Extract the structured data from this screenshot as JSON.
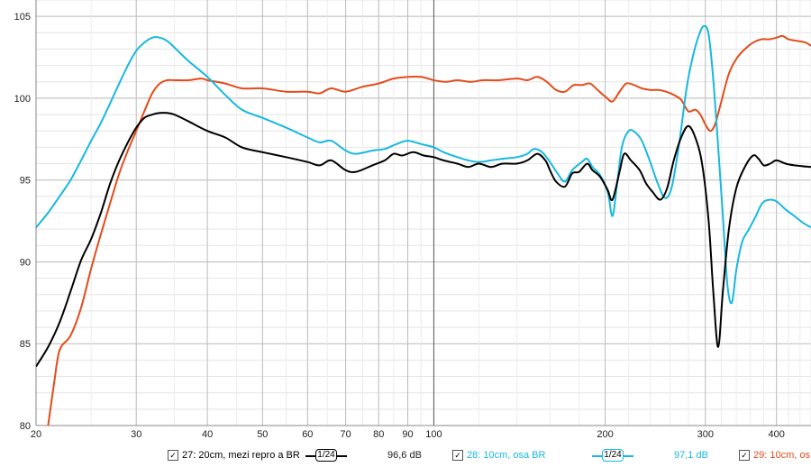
{
  "chart_data": {
    "type": "line",
    "xscale": "log",
    "xlim": [
      20,
      460
    ],
    "ylim": [
      80,
      106
    ],
    "grid": true,
    "x_ticks": [
      20,
      30,
      40,
      50,
      60,
      70,
      80,
      90,
      100,
      200,
      300,
      400
    ],
    "x_tick_labels": [
      "20",
      "30",
      "40",
      "50",
      "60",
      "70",
      "80",
      "90",
      "100",
      "200",
      "300",
      "400"
    ],
    "y_ticks": [
      80,
      85,
      90,
      95,
      100,
      105
    ],
    "y_tick_labels": [
      "80",
      "85",
      "90",
      "95",
      "100",
      "105"
    ],
    "series": [
      {
        "name": "27: 20cm, mezi repro a BR",
        "color": "#000000",
        "smoothing": "1/24",
        "level": "96,6 dB",
        "points": [
          [
            20,
            83.6
          ],
          [
            21,
            84.8
          ],
          [
            22,
            86.3
          ],
          [
            23,
            88.2
          ],
          [
            24,
            90.1
          ],
          [
            25,
            91.4
          ],
          [
            26,
            93.0
          ],
          [
            27,
            94.8
          ],
          [
            28,
            96.2
          ],
          [
            29,
            97.3
          ],
          [
            30,
            98.2
          ],
          [
            31,
            98.8
          ],
          [
            32,
            99.0
          ],
          [
            33,
            99.1
          ],
          [
            34,
            99.1
          ],
          [
            35,
            99.0
          ],
          [
            37,
            98.6
          ],
          [
            40,
            98.0
          ],
          [
            43,
            97.6
          ],
          [
            46,
            97.0
          ],
          [
            50,
            96.7
          ],
          [
            55,
            96.4
          ],
          [
            60,
            96.1
          ],
          [
            63,
            95.9
          ],
          [
            66,
            96.2
          ],
          [
            70,
            95.6
          ],
          [
            73,
            95.5
          ],
          [
            78,
            95.9
          ],
          [
            82,
            96.2
          ],
          [
            85,
            96.6
          ],
          [
            88,
            96.5
          ],
          [
            92,
            96.7
          ],
          [
            96,
            96.5
          ],
          [
            100,
            96.4
          ],
          [
            104,
            96.2
          ],
          [
            110,
            96.0
          ],
          [
            115,
            95.8
          ],
          [
            120,
            96.0
          ],
          [
            126,
            95.8
          ],
          [
            132,
            96.0
          ],
          [
            140,
            96.0
          ],
          [
            146,
            96.2
          ],
          [
            152,
            96.6
          ],
          [
            157,
            96.2
          ],
          [
            160,
            95.6
          ],
          [
            164,
            94.9
          ],
          [
            170,
            94.6
          ],
          [
            175,
            95.4
          ],
          [
            180,
            95.5
          ],
          [
            186,
            96.0
          ],
          [
            190,
            95.6
          ],
          [
            196,
            95.2
          ],
          [
            202,
            94.4
          ],
          [
            206,
            93.8
          ],
          [
            212,
            95.5
          ],
          [
            216,
            96.6
          ],
          [
            222,
            96.2
          ],
          [
            230,
            95.6
          ],
          [
            236,
            94.8
          ],
          [
            242,
            94.3
          ],
          [
            250,
            93.8
          ],
          [
            257,
            94.5
          ],
          [
            264,
            96.2
          ],
          [
            272,
            97.6
          ],
          [
            280,
            98.3
          ],
          [
            288,
            97.6
          ],
          [
            296,
            96.0
          ],
          [
            304,
            92.5
          ],
          [
            310,
            88.0
          ],
          [
            316,
            84.8
          ],
          [
            322,
            88.2
          ],
          [
            330,
            92.0
          ],
          [
            340,
            94.5
          ],
          [
            352,
            95.8
          ],
          [
            364,
            96.5
          ],
          [
            372,
            96.3
          ],
          [
            380,
            95.9
          ],
          [
            390,
            96.0
          ],
          [
            400,
            96.2
          ],
          [
            415,
            96.0
          ],
          [
            430,
            95.9
          ],
          [
            460,
            95.8
          ]
        ]
      },
      {
        "name": "28: 10cm, osa BR",
        "color": "#18b8e0",
        "smoothing": "1/24",
        "level": "97,1 dB",
        "points": [
          [
            20,
            92.1
          ],
          [
            21,
            93.0
          ],
          [
            22,
            94.0
          ],
          [
            23,
            95.0
          ],
          [
            24,
            96.2
          ],
          [
            25,
            97.4
          ],
          [
            26,
            98.5
          ],
          [
            27,
            99.7
          ],
          [
            28,
            100.9
          ],
          [
            29,
            102.0
          ],
          [
            30,
            102.9
          ],
          [
            31,
            103.4
          ],
          [
            32,
            103.7
          ],
          [
            33,
            103.7
          ],
          [
            34,
            103.5
          ],
          [
            35,
            103.1
          ],
          [
            37,
            102.3
          ],
          [
            40,
            101.3
          ],
          [
            43,
            100.2
          ],
          [
            46,
            99.3
          ],
          [
            50,
            98.8
          ],
          [
            55,
            98.2
          ],
          [
            60,
            97.6
          ],
          [
            63,
            97.3
          ],
          [
            66,
            97.4
          ],
          [
            70,
            96.8
          ],
          [
            73,
            96.6
          ],
          [
            78,
            96.8
          ],
          [
            82,
            96.9
          ],
          [
            86,
            97.2
          ],
          [
            90,
            97.4
          ],
          [
            95,
            97.2
          ],
          [
            100,
            97.0
          ],
          [
            104,
            96.7
          ],
          [
            110,
            96.4
          ],
          [
            115,
            96.2
          ],
          [
            120,
            96.1
          ],
          [
            126,
            96.2
          ],
          [
            132,
            96.3
          ],
          [
            140,
            96.4
          ],
          [
            146,
            96.6
          ],
          [
            150,
            96.9
          ],
          [
            155,
            96.7
          ],
          [
            160,
            96.1
          ],
          [
            165,
            95.4
          ],
          [
            170,
            94.9
          ],
          [
            175,
            95.6
          ],
          [
            182,
            96.1
          ],
          [
            186,
            96.3
          ],
          [
            190,
            95.8
          ],
          [
            196,
            95.3
          ],
          [
            202,
            94.3
          ],
          [
            206,
            92.8
          ],
          [
            210,
            94.8
          ],
          [
            214,
            97.0
          ],
          [
            220,
            98.0
          ],
          [
            226,
            97.9
          ],
          [
            232,
            97.4
          ],
          [
            240,
            96.1
          ],
          [
            248,
            94.7
          ],
          [
            255,
            93.9
          ],
          [
            262,
            94.6
          ],
          [
            270,
            97.3
          ],
          [
            278,
            100.6
          ],
          [
            285,
            102.5
          ],
          [
            292,
            103.8
          ],
          [
            298,
            104.4
          ],
          [
            304,
            103.9
          ],
          [
            310,
            101.0
          ],
          [
            316,
            97.0
          ],
          [
            322,
            92.8
          ],
          [
            328,
            88.6
          ],
          [
            334,
            87.5
          ],
          [
            340,
            89.5
          ],
          [
            348,
            91.2
          ],
          [
            358,
            92.0
          ],
          [
            368,
            92.8
          ],
          [
            378,
            93.6
          ],
          [
            390,
            93.8
          ],
          [
            400,
            93.7
          ],
          [
            415,
            93.2
          ],
          [
            430,
            92.8
          ],
          [
            445,
            92.4
          ],
          [
            460,
            92.1
          ]
        ]
      },
      {
        "name": "29: 10cm, os",
        "color": "#e34b1a",
        "smoothing": "1/24",
        "level": "",
        "points": [
          [
            21,
            80.0
          ],
          [
            21.5,
            82.5
          ],
          [
            22,
            84.6
          ],
          [
            23,
            85.5
          ],
          [
            24,
            87.2
          ],
          [
            25,
            89.6
          ],
          [
            26,
            91.7
          ],
          [
            27,
            93.6
          ],
          [
            28,
            95.4
          ],
          [
            29,
            96.8
          ],
          [
            30,
            98.0
          ],
          [
            31,
            99.2
          ],
          [
            32,
            100.3
          ],
          [
            33,
            100.9
          ],
          [
            34,
            101.1
          ],
          [
            35,
            101.1
          ],
          [
            37,
            101.1
          ],
          [
            39,
            101.2
          ],
          [
            40,
            101.1
          ],
          [
            43,
            100.9
          ],
          [
            46,
            100.6
          ],
          [
            50,
            100.6
          ],
          [
            55,
            100.4
          ],
          [
            60,
            100.4
          ],
          [
            63,
            100.3
          ],
          [
            66,
            100.6
          ],
          [
            70,
            100.4
          ],
          [
            75,
            100.7
          ],
          [
            80,
            100.9
          ],
          [
            85,
            101.2
          ],
          [
            90,
            101.3
          ],
          [
            95,
            101.3
          ],
          [
            100,
            101.1
          ],
          [
            105,
            101.0
          ],
          [
            110,
            101.1
          ],
          [
            116,
            101.0
          ],
          [
            122,
            101.1
          ],
          [
            130,
            101.1
          ],
          [
            140,
            101.2
          ],
          [
            146,
            101.1
          ],
          [
            152,
            101.3
          ],
          [
            158,
            101.0
          ],
          [
            164,
            100.5
          ],
          [
            170,
            100.4
          ],
          [
            176,
            100.8
          ],
          [
            182,
            100.8
          ],
          [
            188,
            100.9
          ],
          [
            194,
            100.5
          ],
          [
            200,
            100.1
          ],
          [
            206,
            99.8
          ],
          [
            212,
            100.4
          ],
          [
            218,
            100.9
          ],
          [
            225,
            100.8
          ],
          [
            232,
            100.6
          ],
          [
            240,
            100.5
          ],
          [
            248,
            100.5
          ],
          [
            256,
            100.4
          ],
          [
            264,
            100.2
          ],
          [
            272,
            99.9
          ],
          [
            280,
            99.2
          ],
          [
            288,
            99.3
          ],
          [
            294,
            99.0
          ],
          [
            300,
            98.4
          ],
          [
            306,
            98.0
          ],
          [
            312,
            98.4
          ],
          [
            320,
            99.8
          ],
          [
            330,
            101.5
          ],
          [
            340,
            102.4
          ],
          [
            352,
            103.0
          ],
          [
            364,
            103.4
          ],
          [
            376,
            103.6
          ],
          [
            388,
            103.6
          ],
          [
            400,
            103.7
          ],
          [
            410,
            103.8
          ],
          [
            420,
            103.6
          ],
          [
            435,
            103.5
          ],
          [
            450,
            103.4
          ],
          [
            460,
            103.2
          ]
        ]
      }
    ]
  }
}
